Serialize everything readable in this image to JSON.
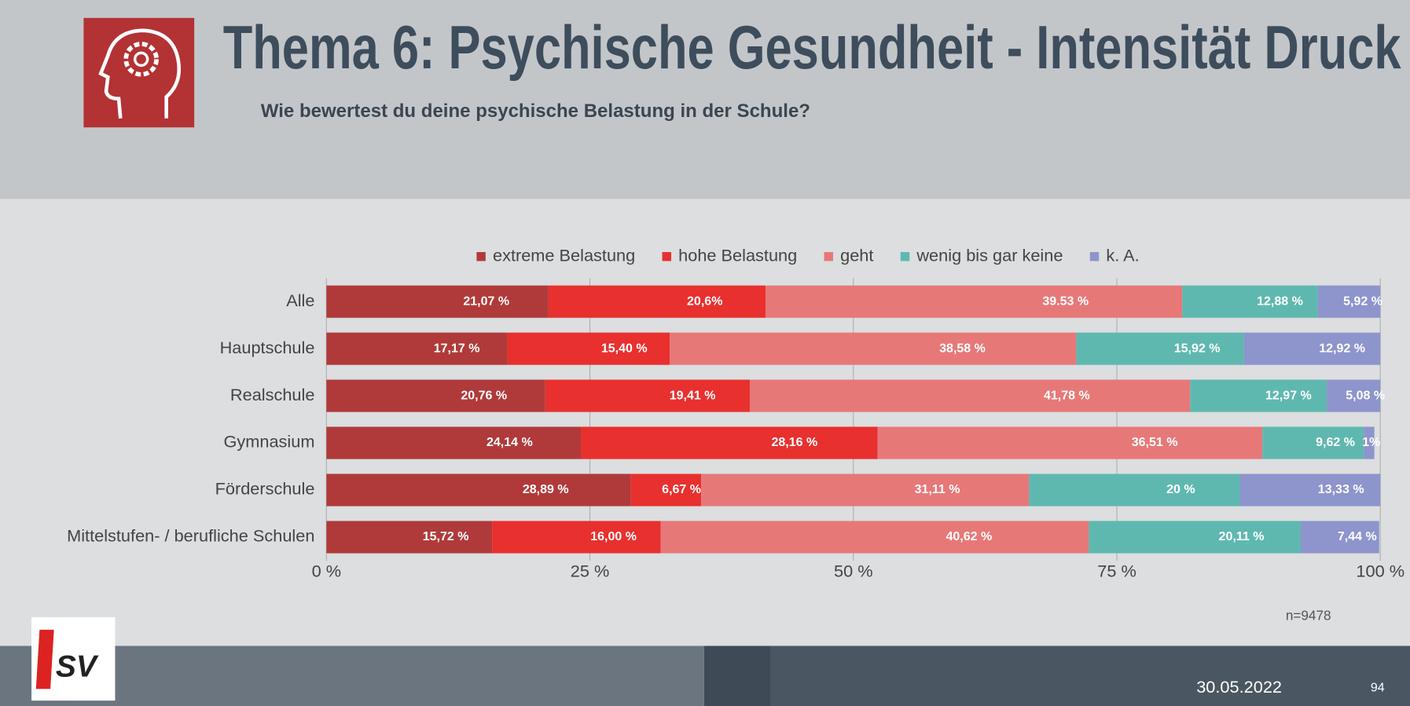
{
  "header": {
    "title": "Thema 6: Psychische Gesundheit - Intensität Druck",
    "subtitle": "Wie bewertest du deine psychische Belastung in der Schule?"
  },
  "chart_data": {
    "type": "stacked_barh",
    "categories": [
      "Alle",
      "Hauptschule",
      "Realschule",
      "Gymnasium",
      "Förderschule",
      "Mittelstufen- / berufliche Schulen"
    ],
    "series": [
      {
        "name": "extreme Belastung",
        "color": "#b03a3a",
        "values": [
          21.07,
          17.17,
          20.76,
          24.14,
          28.89,
          15.72
        ],
        "value_labels": [
          "21,07 %",
          "17,17 %",
          "20,76 %",
          "24,14 %",
          "28,89 %",
          "15,72 %"
        ]
      },
      {
        "name": "hohe Belastung",
        "color": "#e8302e",
        "values": [
          20.6,
          15.4,
          19.41,
          28.16,
          6.67,
          16.0
        ],
        "value_labels": [
          "20,6%",
          "15,40 %",
          "19,41 %",
          "28,16 %",
          "6,67 %",
          "16,00 %"
        ]
      },
      {
        "name": "geht",
        "color": "#e77878",
        "values": [
          39.53,
          38.58,
          41.78,
          36.51,
          31.11,
          40.62
        ],
        "value_labels": [
          "39.53 %",
          "38,58 %",
          "41,78 %",
          "36,51 %",
          "31,11 %",
          "40,62 %"
        ]
      },
      {
        "name": "wenig bis gar keine",
        "color": "#5fb8b0",
        "values": [
          12.88,
          15.92,
          12.97,
          9.62,
          20,
          20.11
        ],
        "value_labels": [
          "12,88 %",
          "15,92 %",
          "12,97 %",
          "9,62 %",
          "20 %",
          "20,11 %"
        ]
      },
      {
        "name": "k. A.",
        "color": "#8e94cc",
        "values": [
          5.92,
          12.92,
          5.08,
          1,
          13.33,
          7.44
        ],
        "value_labels": [
          "5,92 %",
          "12,92 %",
          "5,08 %",
          "1%",
          "13,33 %",
          "7,44 %"
        ]
      }
    ],
    "xlim": [
      0,
      100
    ],
    "xticks": [
      {
        "value": 0,
        "label": "0 %"
      },
      {
        "value": 25,
        "label": "25 %"
      },
      {
        "value": 50,
        "label": "50 %"
      },
      {
        "value": 75,
        "label": "75 %"
      },
      {
        "value": 100,
        "label": "100 %"
      }
    ],
    "grid": true,
    "legend": "top",
    "note": "n=9478"
  },
  "footer": {
    "logo": "SV",
    "date": "30.05.2022",
    "page": "94"
  }
}
